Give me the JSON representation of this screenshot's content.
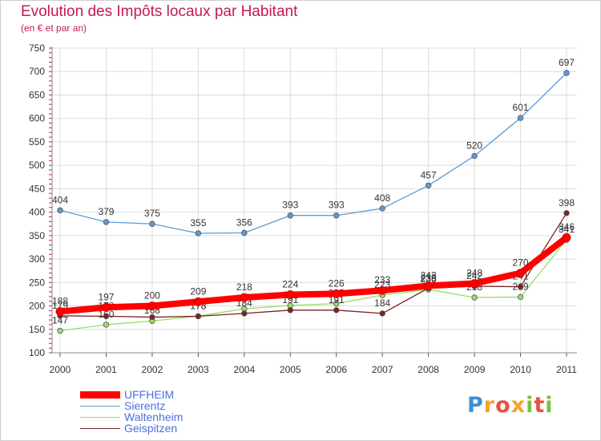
{
  "title": "Evolution des Impôts locaux par Habitant",
  "subtitle": "(en € et par an)",
  "logo": {
    "text": "Proxiti",
    "colors": [
      "#3b8fd6",
      "#f0a52a",
      "#e8533a",
      "#7bbf3f"
    ]
  },
  "chart_data": {
    "type": "line",
    "title": "Evolution des Impôts locaux par Habitant",
    "subtitle": "(en € et par an)",
    "xlabel": "",
    "ylabel": "",
    "x": [
      "2000",
      "2001",
      "2002",
      "2003",
      "2004",
      "2005",
      "2006",
      "2007",
      "2008",
      "2009",
      "2010",
      "2011"
    ],
    "ylim": [
      100,
      750
    ],
    "yticks": [
      100,
      150,
      200,
      250,
      300,
      350,
      400,
      450,
      500,
      550,
      600,
      650,
      700,
      750
    ],
    "grid": true,
    "legend_position": "bottom-left",
    "series": [
      {
        "name": "UFFHEIM",
        "color": "#ff0000",
        "values": [
          188,
          197,
          200,
          209,
          218,
          224,
          226,
          233,
          243,
          248,
          270,
          346
        ]
      },
      {
        "name": "Sierentz",
        "color": "#5b9bd5",
        "values": [
          404,
          379,
          375,
          355,
          356,
          393,
          393,
          408,
          457,
          520,
          601,
          697
        ]
      },
      {
        "name": "Waltenheim",
        "color": "#99dd66",
        "values": [
          147,
          160,
          168,
          178,
          194,
          201,
          205,
          223,
          235,
          218,
          219,
          341
        ]
      },
      {
        "name": "Geispitzen",
        "color": "#7b2323",
        "values": [
          179,
          178,
          176,
          178,
          184,
          191,
          191,
          184,
          238,
          242,
          241,
          398
        ]
      }
    ]
  }
}
